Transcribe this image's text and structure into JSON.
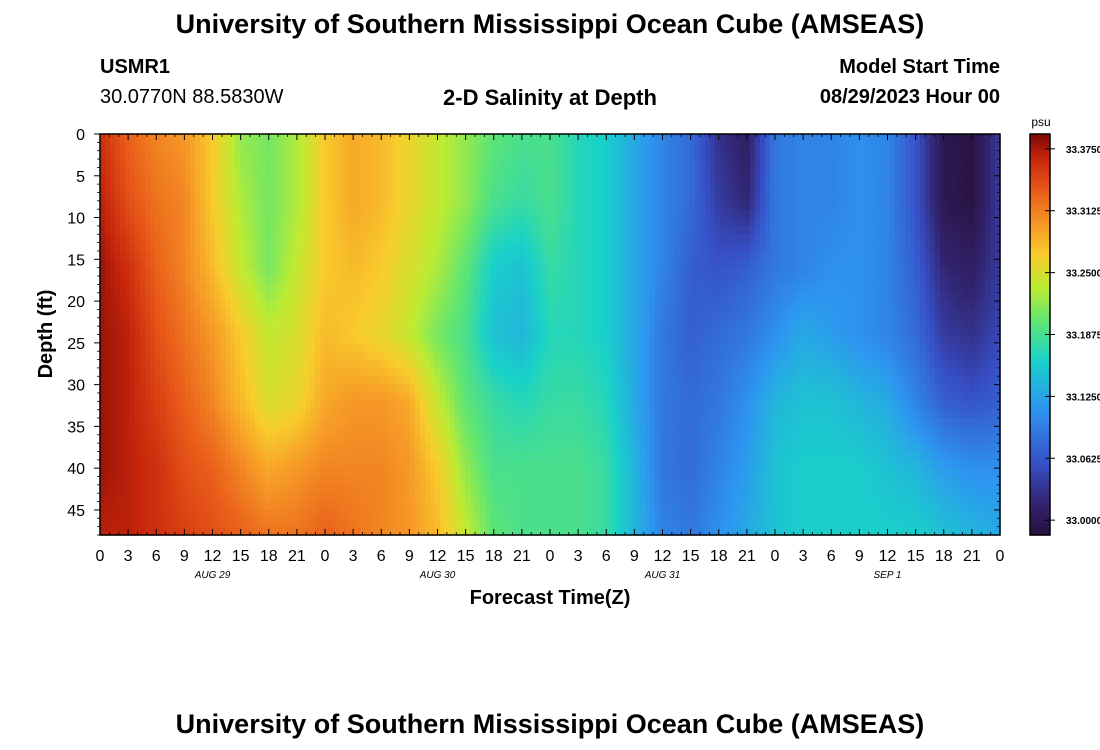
{
  "header": {
    "title": "University of Southern Mississippi Ocean Cube (AMSEAS)",
    "station": "USMR1",
    "coords": "30.0770N  88.5830W",
    "plot_title": "2-D Salinity at Depth",
    "model_start_label": "Model Start Time",
    "model_start_value": "08/29/2023 Hour 00"
  },
  "footer": {
    "title": "University of Southern Mississippi Ocean Cube (AMSEAS)"
  },
  "chart_data": {
    "type": "heatmap",
    "xlabel": "Forecast Time(Z)",
    "ylabel": "Depth (ft)",
    "x_tick_labels": [
      "0",
      "3",
      "6",
      "9",
      "12",
      "15",
      "18",
      "21",
      "0",
      "3",
      "6",
      "9",
      "12",
      "15",
      "18",
      "21",
      "0",
      "3",
      "6",
      "9",
      "12",
      "15",
      "18",
      "21",
      "0",
      "3",
      "6",
      "9",
      "12",
      "15",
      "18",
      "21",
      "0"
    ],
    "day_labels": [
      "AUG 29",
      "AUG 30",
      "AUG 31",
      "SEP 1"
    ],
    "y_tick_labels": [
      "0",
      "5",
      "10",
      "15",
      "20",
      "25",
      "30",
      "35",
      "40",
      "45"
    ],
    "y_ticks": [
      0,
      5,
      10,
      15,
      20,
      25,
      30,
      35,
      40,
      45
    ],
    "ylim": [
      0,
      48
    ],
    "xlim_hours": [
      0,
      96
    ],
    "colorbar": {
      "unit": "psu",
      "tick_labels": [
        "33.3750",
        "33.3125",
        "33.2500",
        "33.1875",
        "33.1250",
        "33.0625",
        "33.0000"
      ],
      "ticks": [
        33.375,
        33.3125,
        33.25,
        33.1875,
        33.125,
        33.0625,
        33.0
      ],
      "range": [
        32.985,
        33.39
      ]
    },
    "depths": [
      0,
      8,
      16,
      24,
      32,
      40,
      48
    ],
    "hours": [
      0,
      3,
      6,
      9,
      12,
      15,
      18,
      21,
      24,
      27,
      30,
      33,
      36,
      39,
      42,
      45,
      48,
      51,
      54,
      57,
      60,
      63,
      66,
      69,
      72,
      75,
      78,
      81,
      84,
      87,
      90,
      93,
      96
    ],
    "values": [
      [
        33.36,
        33.33,
        33.31,
        33.3,
        33.27,
        33.22,
        33.21,
        33.23,
        33.27,
        33.29,
        33.28,
        33.26,
        33.24,
        33.22,
        33.2,
        33.19,
        33.19,
        33.17,
        33.16,
        33.13,
        33.1,
        33.08,
        33.03,
        33.01,
        33.09,
        33.1,
        33.1,
        33.11,
        33.1,
        33.06,
        33.0,
        32.99,
        33.04
      ],
      [
        33.37,
        33.34,
        33.32,
        33.31,
        33.27,
        33.23,
        33.21,
        33.23,
        33.27,
        33.29,
        33.28,
        33.26,
        33.24,
        33.22,
        33.19,
        33.18,
        33.19,
        33.17,
        33.16,
        33.13,
        33.1,
        33.08,
        33.04,
        33.02,
        33.09,
        33.1,
        33.1,
        33.11,
        33.1,
        33.06,
        33.0,
        32.99,
        33.04
      ],
      [
        33.38,
        33.36,
        33.33,
        33.31,
        33.28,
        33.24,
        33.21,
        33.24,
        33.27,
        33.28,
        33.27,
        33.25,
        33.23,
        33.2,
        33.16,
        33.15,
        33.18,
        33.17,
        33.16,
        33.13,
        33.1,
        33.07,
        33.06,
        33.07,
        33.09,
        33.1,
        33.11,
        33.11,
        33.1,
        33.07,
        33.02,
        33.01,
        33.04
      ],
      [
        33.38,
        33.37,
        33.34,
        33.32,
        33.3,
        33.27,
        33.24,
        33.25,
        33.28,
        33.27,
        33.26,
        33.24,
        33.21,
        33.19,
        33.15,
        33.14,
        33.17,
        33.17,
        33.16,
        33.13,
        33.09,
        33.07,
        33.08,
        33.09,
        33.11,
        33.13,
        33.12,
        33.11,
        33.1,
        33.08,
        33.04,
        33.03,
        33.05
      ],
      [
        33.38,
        33.37,
        33.35,
        33.33,
        33.31,
        33.28,
        33.25,
        33.26,
        33.29,
        33.3,
        33.3,
        33.29,
        33.24,
        33.2,
        33.18,
        33.17,
        33.18,
        33.18,
        33.17,
        33.13,
        33.09,
        33.08,
        33.09,
        33.11,
        33.14,
        33.15,
        33.15,
        33.14,
        33.13,
        33.1,
        33.07,
        33.06,
        33.07
      ],
      [
        33.38,
        33.37,
        33.36,
        33.34,
        33.33,
        33.31,
        33.29,
        33.3,
        33.31,
        33.31,
        33.31,
        33.3,
        33.27,
        33.22,
        33.19,
        33.19,
        33.19,
        33.19,
        33.18,
        33.14,
        33.09,
        33.08,
        33.1,
        33.12,
        33.15,
        33.16,
        33.16,
        33.16,
        33.15,
        33.14,
        33.12,
        33.11,
        33.11
      ],
      [
        33.37,
        33.37,
        33.36,
        33.35,
        33.34,
        33.33,
        33.32,
        33.32,
        33.33,
        33.32,
        33.31,
        33.3,
        33.28,
        33.24,
        33.2,
        33.19,
        33.19,
        33.19,
        33.18,
        33.14,
        33.1,
        33.09,
        33.11,
        33.13,
        33.15,
        33.16,
        33.16,
        33.16,
        33.16,
        33.16,
        33.15,
        33.14,
        33.13
      ]
    ]
  }
}
